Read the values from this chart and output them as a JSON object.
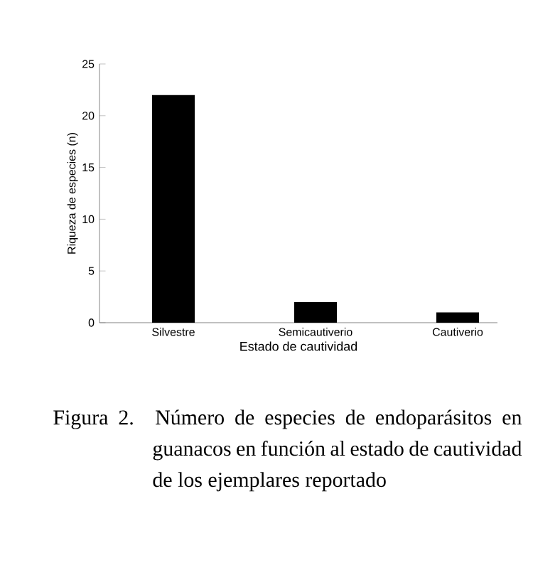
{
  "chart_data": {
    "type": "bar",
    "ylabel": "Riqueza de especies (n)",
    "xlabel": "Estado de cautividad",
    "categories": [
      "Silvestre",
      "Semicautiverio",
      "Cautiverio"
    ],
    "values": [
      22,
      2,
      1
    ],
    "color": "#000000",
    "ylim": [
      0,
      25
    ],
    "yticks": [
      0,
      5,
      10,
      15,
      20,
      25
    ],
    "annotations": [
      "Figura 2. Número de especies de endoparásitos en guanacos en función al estado de cautividad de los ejemplares reportado"
    ]
  }
}
